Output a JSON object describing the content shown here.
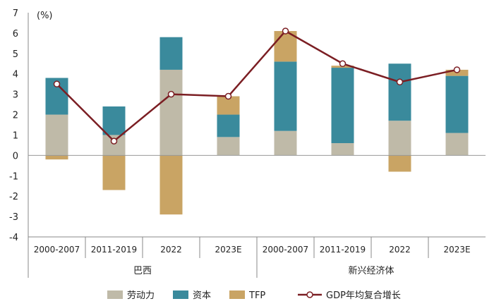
{
  "chart_data": {
    "type": "bar",
    "stacked": true,
    "unit_label": "(%)",
    "ylim": [
      -4,
      7
    ],
    "yticks": [
      -4,
      -3,
      -2,
      -1,
      0,
      1,
      2,
      3,
      4,
      5,
      6,
      7
    ],
    "groups": [
      {
        "name": "巴西",
        "categories": [
          "2000-2007",
          "2011-2019",
          "2022",
          "2023E"
        ]
      },
      {
        "name": "新兴经济体",
        "categories": [
          "2000-2007",
          "2011-2019",
          "2022",
          "2023E"
        ]
      }
    ],
    "series": [
      {
        "name": "劳动力",
        "color": "#BFBAA8",
        "values": [
          2.0,
          1.0,
          4.2,
          0.9,
          1.2,
          0.6,
          1.7,
          1.1
        ]
      },
      {
        "name": "资本",
        "color": "#3A8A9C",
        "values": [
          1.8,
          1.4,
          1.6,
          1.1,
          3.4,
          3.7,
          2.8,
          2.8
        ]
      },
      {
        "name": "TFP",
        "color": "#C9A464",
        "values": [
          -0.2,
          -1.7,
          -2.9,
          0.9,
          1.5,
          0.1,
          -0.8,
          0.3
        ]
      }
    ],
    "line": {
      "name": "GDP年均复合增长",
      "color": "#7B1E23",
      "values": [
        3.5,
        0.7,
        3.0,
        2.9,
        6.1,
        4.5,
        3.6,
        4.2
      ]
    }
  }
}
